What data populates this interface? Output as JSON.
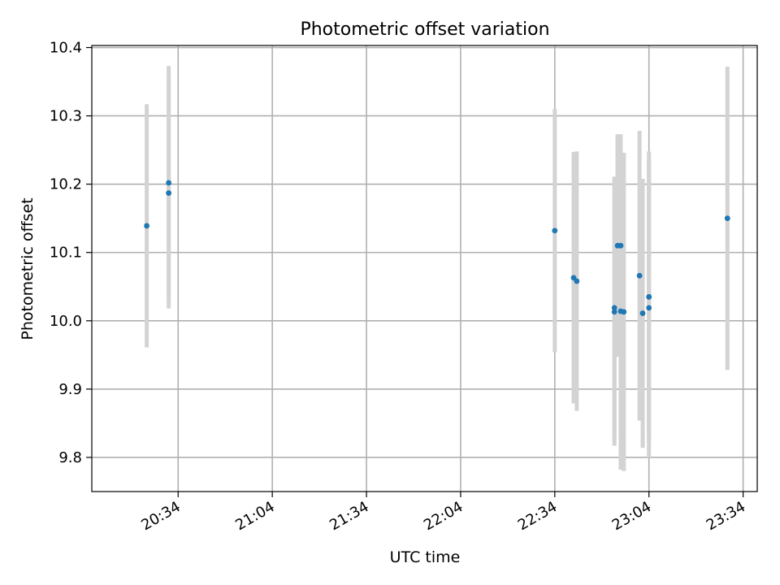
{
  "chart_data": {
    "type": "scatter",
    "title": "Photometric offset variation",
    "xlabel": "UTC time",
    "ylabel": "Photometric offset",
    "x_tick_labels": [
      "20:34",
      "21:04",
      "21:34",
      "22:04",
      "22:34",
      "23:04",
      "23:34"
    ],
    "x_tick_minutes": [
      1234,
      1264,
      1294,
      1324,
      1354,
      1384,
      1414
    ],
    "y_ticks": [
      9.8,
      9.9,
      10.0,
      10.1,
      10.2,
      10.3,
      10.4
    ],
    "y_tick_labels": [
      "9.8",
      "9.9",
      "10.0",
      "10.1",
      "10.2",
      "10.3",
      "10.4"
    ],
    "xlim_minutes": [
      1206.5,
      1418.5
    ],
    "ylim": [
      9.75,
      10.403
    ],
    "grid": true,
    "point_color": "#1f77b4",
    "errorbar_color": "#d3d3d3",
    "points": [
      {
        "t": "20:24",
        "y": 10.139,
        "err": 0.178
      },
      {
        "t": "20:31",
        "y": 10.202,
        "err": 0.171
      },
      {
        "t": "20:31",
        "y": 10.187,
        "err": 0.169
      },
      {
        "t": "22:34",
        "y": 10.132,
        "err": 0.178
      },
      {
        "t": "22:40",
        "y": 10.063,
        "err": 0.184
      },
      {
        "t": "22:41",
        "y": 10.058,
        "err": 0.19
      },
      {
        "t": "22:53",
        "y": 10.019,
        "err": 0.192
      },
      {
        "t": "22:53",
        "y": 10.013,
        "err": 0.196
      },
      {
        "t": "22:54",
        "y": 10.11,
        "err": 0.163
      },
      {
        "t": "22:55",
        "y": 10.11,
        "err": 0.163
      },
      {
        "t": "22:55",
        "y": 10.014,
        "err": 0.232
      },
      {
        "t": "22:56",
        "y": 10.013,
        "err": 0.233
      },
      {
        "t": "23:01",
        "y": 10.066,
        "err": 0.212
      },
      {
        "t": "23:02",
        "y": 10.011,
        "err": 0.197
      },
      {
        "t": "23:04",
        "y": 10.019,
        "err": 0.219
      },
      {
        "t": "23:04",
        "y": 10.035,
        "err": 0.213
      },
      {
        "t": "23:04",
        "y": 10.035,
        "err": 0.2
      },
      {
        "t": "23:29",
        "y": 10.15,
        "err": 0.222
      }
    ]
  }
}
